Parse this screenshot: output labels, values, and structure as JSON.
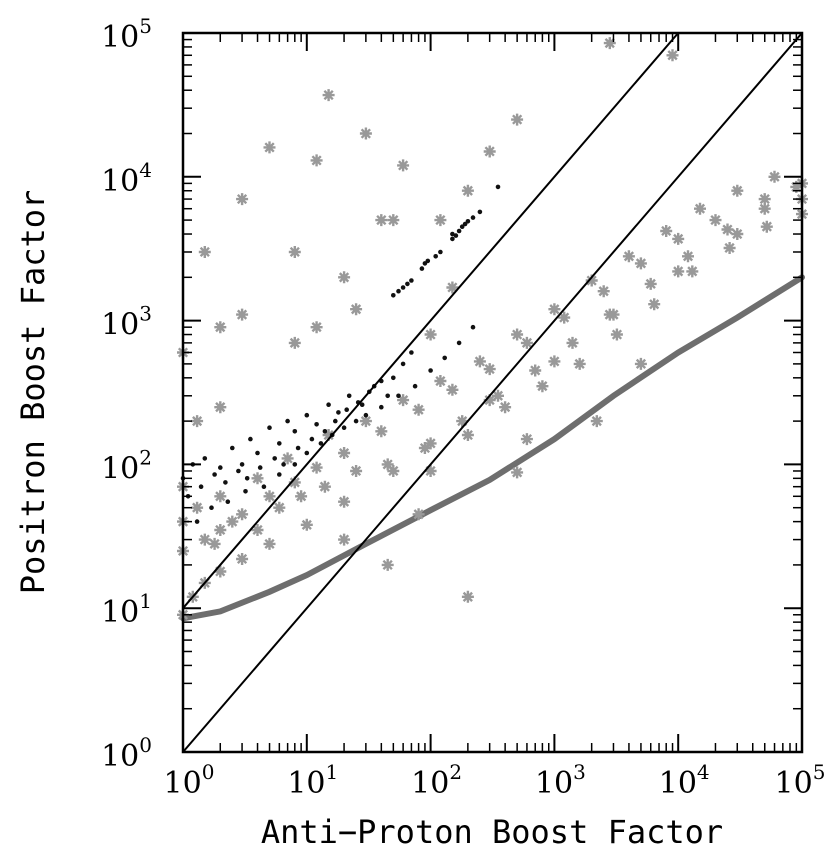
{
  "chart_data": {
    "type": "scatter",
    "xlabel": "Anti−Proton Boost Factor",
    "ylabel": "Positron Boost Factor",
    "xscale": "log",
    "yscale": "log",
    "xlim": [
      1,
      100000
    ],
    "ylim": [
      1,
      100000
    ],
    "x_ticks": [
      {
        "base": "10",
        "exp": "0"
      },
      {
        "base": "10",
        "exp": "1"
      },
      {
        "base": "10",
        "exp": "2"
      },
      {
        "base": "10",
        "exp": "3"
      },
      {
        "base": "10",
        "exp": "4"
      },
      {
        "base": "10",
        "exp": "5"
      }
    ],
    "y_ticks": [
      {
        "base": "10",
        "exp": "0"
      },
      {
        "base": "10",
        "exp": "1"
      },
      {
        "base": "10",
        "exp": "2"
      },
      {
        "base": "10",
        "exp": "3"
      },
      {
        "base": "10",
        "exp": "4"
      },
      {
        "base": "10",
        "exp": "5"
      }
    ],
    "colors": {
      "gray_points": "#999999",
      "black_points": "#111111",
      "lower_band": "#6e6e6e",
      "reference_lines": "#000000"
    },
    "reference_lines": [
      {
        "x": [
          1,
          10000
        ],
        "y": [
          10,
          100000
        ]
      },
      {
        "x": [
          1,
          100000
        ],
        "y": [
          1,
          100000
        ]
      }
    ],
    "lower_band": {
      "x": [
        1,
        2,
        5,
        10,
        30,
        100,
        300,
        1000,
        3000,
        10000,
        30000,
        100000
      ],
      "y": [
        8.5,
        9.5,
        13,
        17,
        28,
        48,
        78,
        150,
        300,
        600,
        1050,
        2000
      ]
    },
    "series": [
      {
        "marker": "asterisk",
        "color": "#999999",
        "points": [
          [
            1,
            9
          ],
          [
            1.2,
            12
          ],
          [
            1.5,
            15
          ],
          [
            2,
            18
          ],
          [
            3,
            22
          ],
          [
            5,
            28
          ],
          [
            10,
            38
          ],
          [
            20,
            55
          ],
          [
            50,
            90
          ],
          [
            100,
            140
          ],
          [
            300,
            280
          ],
          [
            1000,
            520
          ],
          [
            3000,
            1100
          ],
          [
            10000,
            2200
          ],
          [
            30000,
            4000
          ],
          [
            100000,
            7000
          ],
          [
            1,
            25
          ],
          [
            1.5,
            30
          ],
          [
            2,
            35
          ],
          [
            3,
            45
          ],
          [
            5,
            60
          ],
          [
            8,
            75
          ],
          [
            12,
            95
          ],
          [
            20,
            120
          ],
          [
            40,
            170
          ],
          [
            80,
            240
          ],
          [
            150,
            330
          ],
          [
            300,
            460
          ],
          [
            600,
            700
          ],
          [
            1200,
            1050
          ],
          [
            2500,
            1600
          ],
          [
            5000,
            2500
          ],
          [
            10000,
            3700
          ],
          [
            20000,
            5000
          ],
          [
            50000,
            7000
          ],
          [
            100000,
            9000
          ],
          [
            2,
            60
          ],
          [
            4,
            80
          ],
          [
            7,
            110
          ],
          [
            15,
            160
          ],
          [
            30,
            200
          ],
          [
            60,
            280
          ],
          [
            120,
            380
          ],
          [
            250,
            520
          ],
          [
            500,
            800
          ],
          [
            1000,
            1200
          ],
          [
            2000,
            1900
          ],
          [
            4000,
            2800
          ],
          [
            8000,
            4200
          ],
          [
            15000,
            6000
          ],
          [
            30000,
            8000
          ],
          [
            60000,
            10000
          ],
          [
            1,
            40
          ],
          [
            1,
            70
          ],
          [
            1.3,
            50
          ],
          [
            1.8,
            28
          ],
          [
            2.5,
            40
          ],
          [
            4,
            35
          ],
          [
            6,
            50
          ],
          [
            9,
            60
          ],
          [
            14,
            70
          ],
          [
            25,
            90
          ],
          [
            45,
            100
          ],
          [
            90,
            130
          ],
          [
            180,
            200
          ],
          [
            350,
            300
          ],
          [
            700,
            450
          ],
          [
            1400,
            700
          ],
          [
            2800,
            1100
          ],
          [
            6000,
            1800
          ],
          [
            12000,
            2800
          ],
          [
            25000,
            4300
          ],
          [
            50000,
            6000
          ],
          [
            90000,
            8500
          ],
          [
            200,
            160
          ],
          [
            400,
            250
          ],
          [
            800,
            350
          ],
          [
            1600,
            500
          ],
          [
            3200,
            800
          ],
          [
            6400,
            1300
          ],
          [
            13000,
            2200
          ],
          [
            26000,
            3200
          ],
          [
            52000,
            4500
          ],
          [
            100000,
            5500
          ],
          [
            20,
            2000
          ],
          [
            50,
            5000
          ],
          [
            25,
            1200
          ],
          [
            8,
            3000
          ],
          [
            12,
            13000
          ],
          [
            15,
            37000
          ],
          [
            5,
            16000
          ],
          [
            3,
            7000
          ],
          [
            30,
            20000
          ],
          [
            60,
            12000
          ],
          [
            120,
            5000
          ],
          [
            200,
            8000
          ],
          [
            300,
            15000
          ],
          [
            500,
            25000
          ],
          [
            2800,
            85000
          ],
          [
            9000,
            70000
          ],
          [
            1,
            600
          ],
          [
            1.3,
            200
          ],
          [
            2,
            250
          ],
          [
            3,
            1100
          ],
          [
            20,
            30
          ],
          [
            45,
            20
          ],
          [
            100,
            90
          ],
          [
            600,
            150
          ],
          [
            2200,
            200
          ],
          [
            200,
            12
          ],
          [
            80,
            45
          ],
          [
            500,
            88
          ],
          [
            5000,
            500
          ],
          [
            2,
            900
          ],
          [
            8,
            700
          ],
          [
            12,
            900
          ],
          [
            1.5,
            3000
          ],
          [
            40,
            5000
          ],
          [
            150,
            1700
          ],
          [
            100,
            800
          ]
        ]
      },
      {
        "marker": "dot",
        "color": "#111111",
        "points": [
          [
            1,
            80
          ],
          [
            1.2,
            100
          ],
          [
            1.5,
            110
          ],
          [
            2,
            95
          ],
          [
            2.5,
            130
          ],
          [
            3,
            100
          ],
          [
            3.5,
            150
          ],
          [
            4,
            120
          ],
          [
            5,
            180
          ],
          [
            6,
            140
          ],
          [
            7,
            200
          ],
          [
            8,
            170
          ],
          [
            10,
            220
          ],
          [
            12,
            190
          ],
          [
            15,
            260
          ],
          [
            18,
            230
          ],
          [
            22,
            300
          ],
          [
            28,
            260
          ],
          [
            35,
            350
          ],
          [
            45,
            300
          ],
          [
            1.1,
            60
          ],
          [
            1.4,
            70
          ],
          [
            1.8,
            85
          ],
          [
            2.2,
            75
          ],
          [
            2.8,
            90
          ],
          [
            3.3,
            80
          ],
          [
            4.2,
            95
          ],
          [
            5.5,
            110
          ],
          [
            6.5,
            100
          ],
          [
            8.5,
            130
          ],
          [
            11,
            150
          ],
          [
            14,
            170
          ],
          [
            17,
            200
          ],
          [
            21,
            240
          ],
          [
            26,
            270
          ],
          [
            32,
            320
          ],
          [
            40,
            380
          ],
          [
            50,
            400
          ],
          [
            60,
            500
          ],
          [
            70,
            600
          ],
          [
            1.3,
            40
          ],
          [
            1.7,
            50
          ],
          [
            2.3,
            55
          ],
          [
            3.2,
            65
          ],
          [
            4.5,
            70
          ],
          [
            6,
            85
          ],
          [
            8,
            100
          ],
          [
            10,
            120
          ],
          [
            13,
            140
          ],
          [
            16,
            160
          ],
          [
            20,
            180
          ],
          [
            25,
            200
          ],
          [
            30,
            220
          ],
          [
            40,
            250
          ],
          [
            55,
            300
          ],
          [
            75,
            350
          ],
          [
            100,
            450
          ],
          [
            130,
            550
          ],
          [
            170,
            700
          ],
          [
            220,
            900
          ],
          [
            50,
            1500
          ],
          [
            60,
            1700
          ],
          [
            70,
            1900
          ],
          [
            85,
            2300
          ],
          [
            95,
            2600
          ],
          [
            120,
            3000
          ],
          [
            150,
            3700
          ],
          [
            170,
            4200
          ],
          [
            190,
            4700
          ],
          [
            220,
            5200
          ],
          [
            250,
            5700
          ],
          [
            350,
            8500
          ],
          [
            150,
            4000
          ],
          [
            180,
            4500
          ],
          [
            200,
            4900
          ],
          [
            55,
            1600
          ],
          [
            65,
            1800
          ],
          [
            90,
            2500
          ],
          [
            110,
            2800
          ],
          [
            160,
            3900
          ]
        ]
      }
    ]
  }
}
